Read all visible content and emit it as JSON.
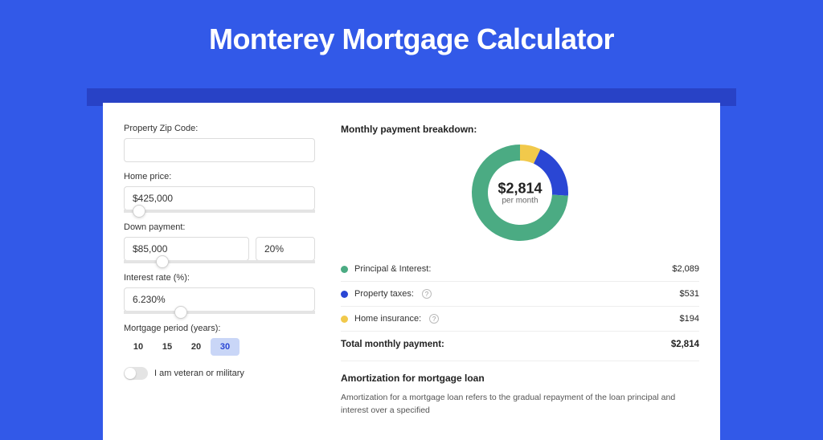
{
  "page": {
    "title": "Monterey Mortgage Calculator",
    "background_color": "#3259e8",
    "header_band_color": "#2842c6",
    "card_bg": "#ffffff"
  },
  "form": {
    "zip": {
      "label": "Property Zip Code:",
      "value": ""
    },
    "home_price": {
      "label": "Home price:",
      "value": "$425,000",
      "slider_pct": 8
    },
    "down_payment": {
      "label": "Down payment:",
      "value": "$85,000",
      "pct": "20%",
      "slider_pct": 20
    },
    "interest_rate": {
      "label": "Interest rate (%):",
      "value": "6.230%",
      "slider_pct": 30
    },
    "period": {
      "label": "Mortgage period (years):",
      "options": [
        "10",
        "15",
        "20",
        "30"
      ],
      "selected": "30"
    },
    "veteran": {
      "label": "I am veteran or military",
      "checked": false
    }
  },
  "breakdown": {
    "title": "Monthly payment breakdown:",
    "donut": {
      "amount": "$2,814",
      "subtext": "per month",
      "segments": [
        {
          "label": "Principal & Interest:",
          "value": "$2,089",
          "color": "#4bab83",
          "pct": 74
        },
        {
          "label": "Property taxes:",
          "value": "$531",
          "color": "#2a46d4",
          "pct": 19,
          "info": true
        },
        {
          "label": "Home insurance:",
          "value": "$194",
          "color": "#f1c94b",
          "pct": 7,
          "info": true
        }
      ]
    },
    "total": {
      "label": "Total monthly payment:",
      "value": "$2,814"
    }
  },
  "amortization": {
    "title": "Amortization for mortgage loan",
    "text": "Amortization for a mortgage loan refers to the gradual repayment of the loan principal and interest over a specified"
  }
}
